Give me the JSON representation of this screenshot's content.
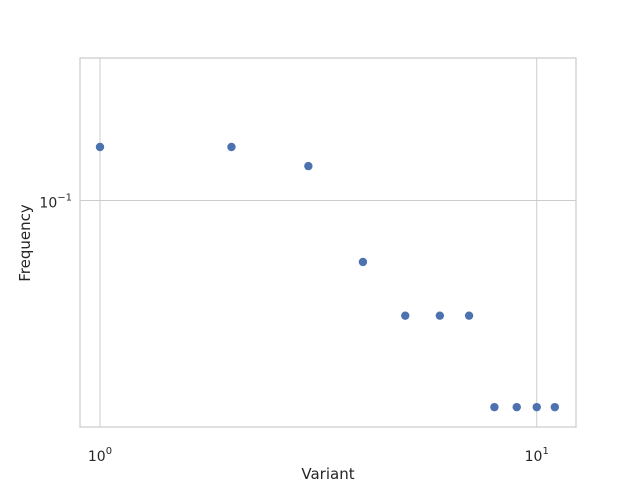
{
  "chart_data": {
    "type": "scatter",
    "title": "",
    "xlabel": "Variant",
    "ylabel": "Frequency",
    "xscale": "log",
    "yscale": "log",
    "xlim": [
      0.9,
      12.3
    ],
    "ylim": [
      0.0115,
      0.39
    ],
    "grid": true,
    "legend": "none",
    "x_ticks": [
      {
        "value": 1,
        "base": "10",
        "exponent": "0"
      },
      {
        "value": 10,
        "base": "10",
        "exponent": "1"
      }
    ],
    "y_ticks": [
      {
        "value": 0.1,
        "base": "10",
        "exponent": "−1"
      }
    ],
    "series": [
      {
        "color": "#4c72b0",
        "points": [
          {
            "x": 1,
            "y": 0.1667
          },
          {
            "x": 2,
            "y": 0.1667
          },
          {
            "x": 3,
            "y": 0.1389
          },
          {
            "x": 4,
            "y": 0.0556
          },
          {
            "x": 5,
            "y": 0.0333
          },
          {
            "x": 6,
            "y": 0.0333
          },
          {
            "x": 7,
            "y": 0.0333
          },
          {
            "x": 8,
            "y": 0.0139
          },
          {
            "x": 9,
            "y": 0.0139
          },
          {
            "x": 10,
            "y": 0.0139
          },
          {
            "x": 11,
            "y": 0.0139
          }
        ]
      }
    ]
  }
}
